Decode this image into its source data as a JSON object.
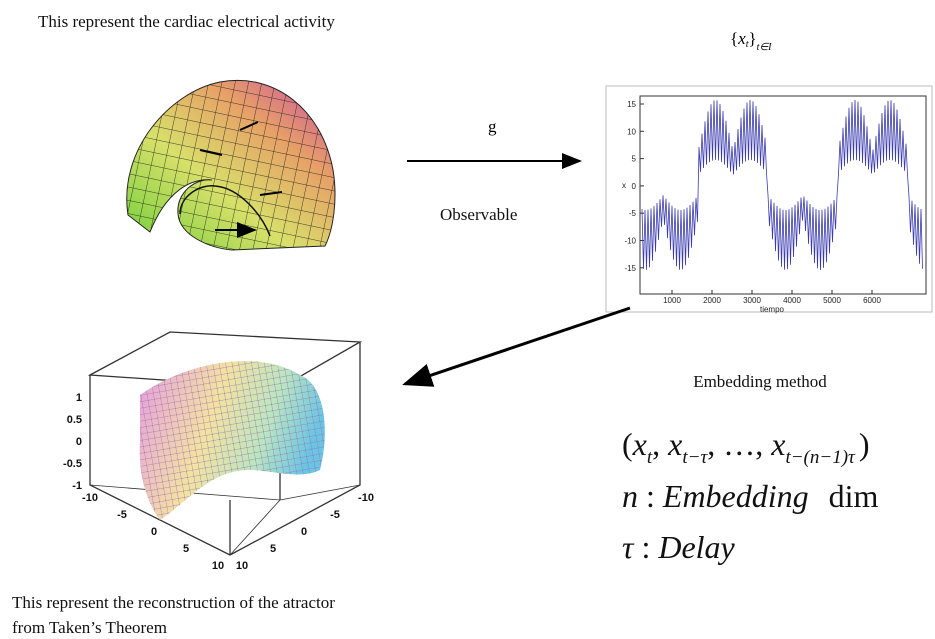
{
  "top_caption": "This represent the cardiac electrical activity",
  "map": {
    "symbol": "g",
    "label": "Observable"
  },
  "series_set": {
    "open": "{",
    "base": "x",
    "sub": "t",
    "close": "}",
    "index": "t∈I"
  },
  "series_plot": {
    "y_axis_label": "x",
    "x_axis_label": "tiempo",
    "yticks": [
      "15",
      "10",
      "5",
      "0",
      "-5",
      "-10",
      "-15"
    ],
    "xticks": [
      "1000",
      "2000",
      "3000",
      "4000",
      "5000",
      "6000"
    ]
  },
  "attractor_plot": {
    "zticks": [
      "1",
      "0.5",
      "0",
      "-0.5",
      "-1"
    ],
    "left_ticks": [
      "-10",
      "-5",
      "0",
      "5",
      "10"
    ],
    "right_ticks": [
      "-10",
      "-5",
      "0",
      "5",
      "10"
    ]
  },
  "embedding": {
    "label": "Embedding method",
    "formula": {
      "open": "(",
      "separator": ",",
      "close": ")",
      "terms": [
        {
          "base": "x",
          "sub": "t"
        },
        {
          "base": "x",
          "sub": "t−τ"
        },
        {
          "base": "…"
        },
        {
          "base": "x",
          "sub": "t−(n−1)τ"
        }
      ]
    },
    "dimension": {
      "symbol": "n",
      "colon": ":",
      "name": "Embedding",
      "word": "dim"
    },
    "delay": {
      "symbol": "τ",
      "colon": ":",
      "name": "Delay"
    }
  },
  "bottom_caption": [
    "This represent the reconstruction of the atractor",
    "from Taken’s Theorem"
  ]
}
